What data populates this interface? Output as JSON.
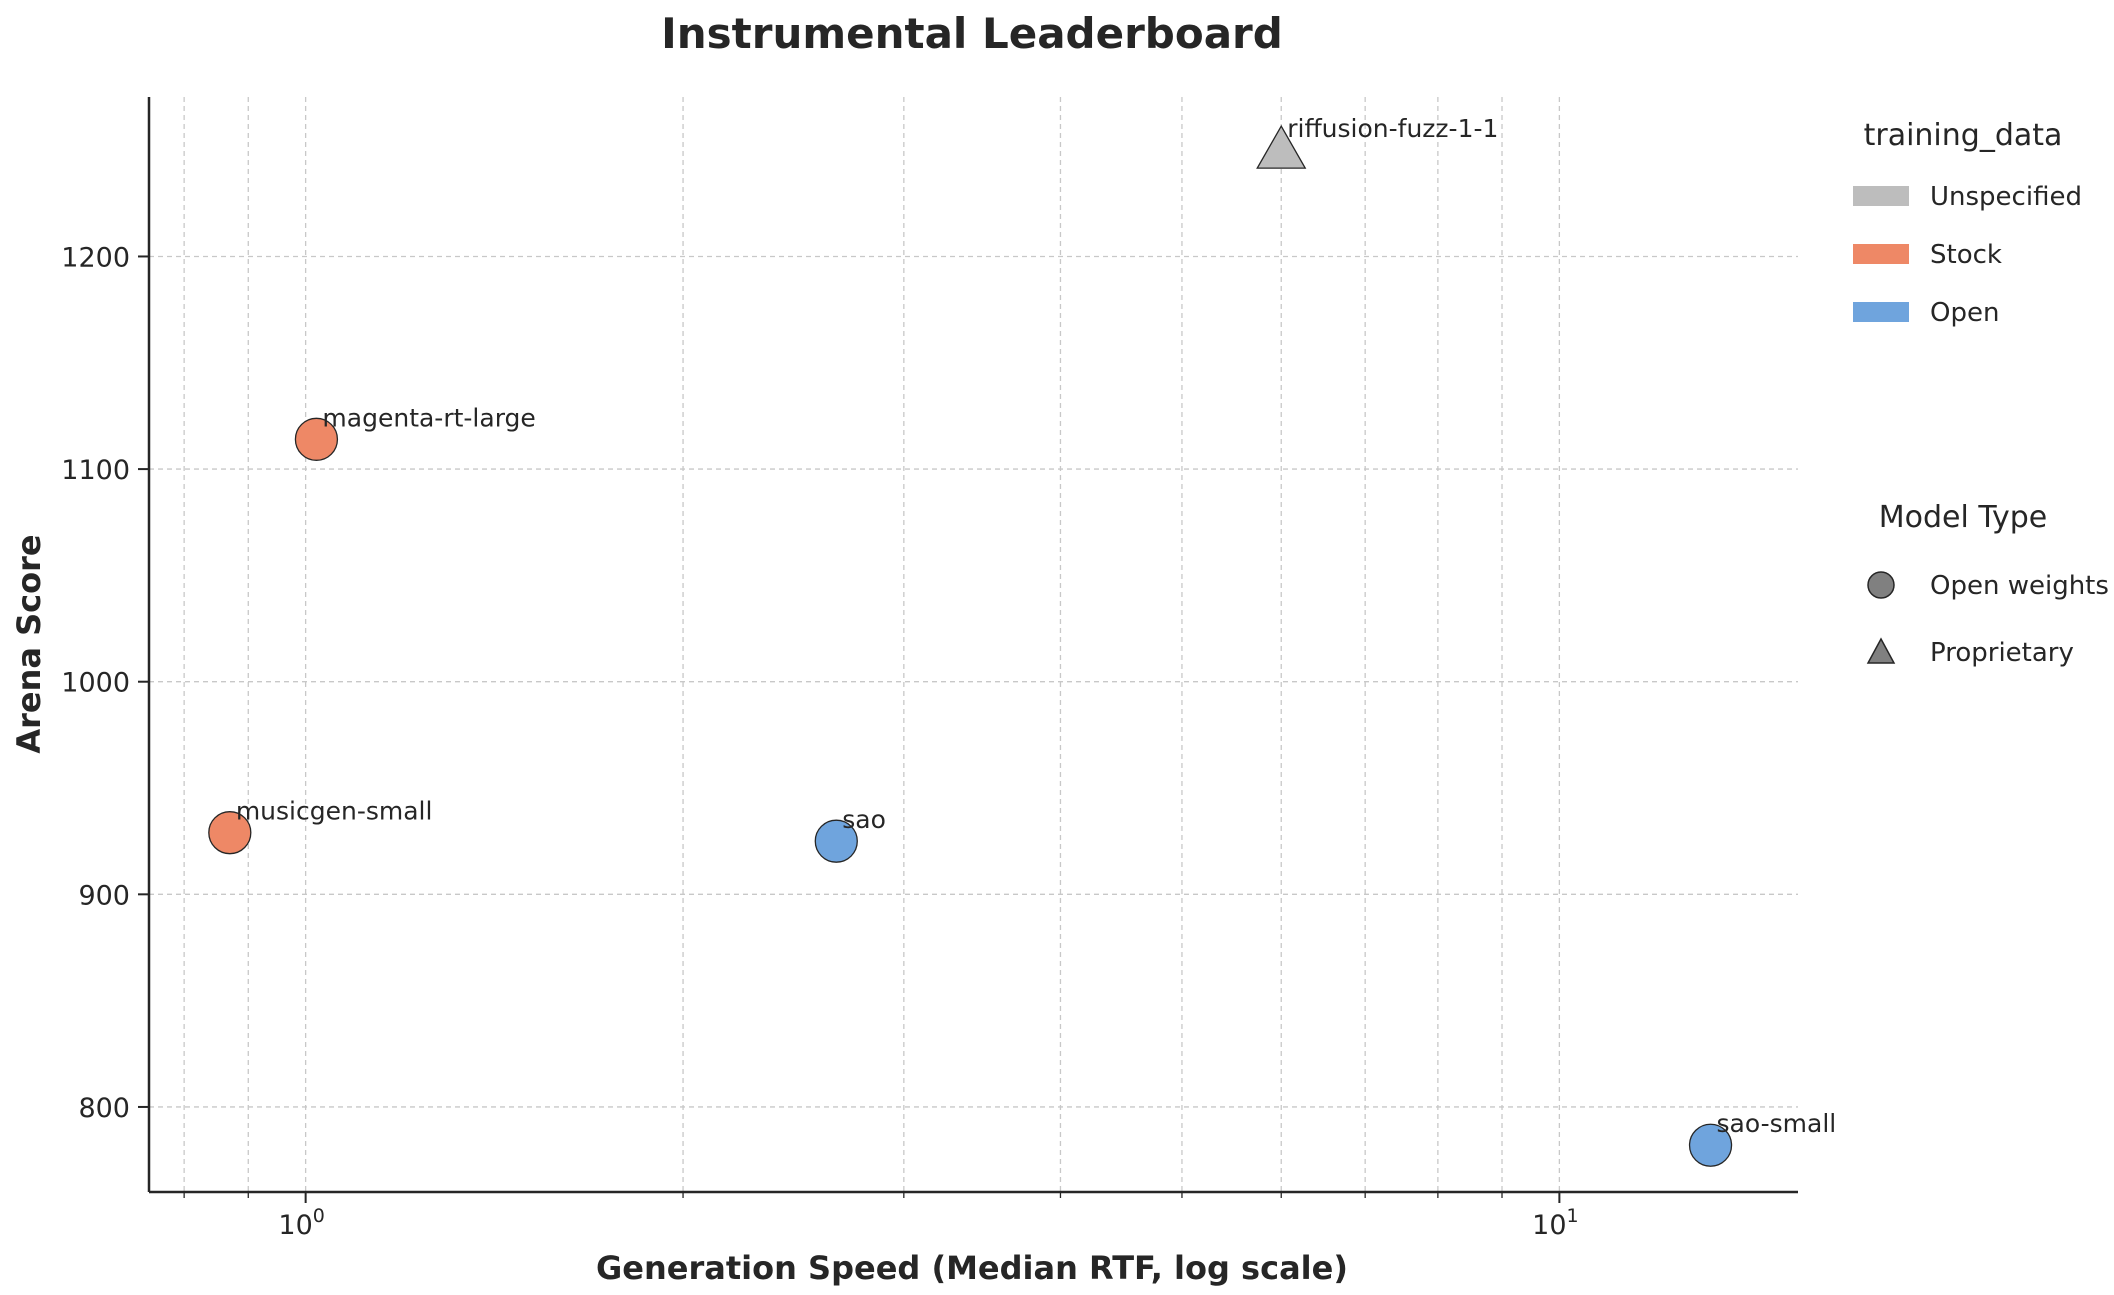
{
  "chart_data": {
    "type": "scatter",
    "title": "Instrumental Leaderboard",
    "xlabel": "Generation Speed (Median RTF, log scale)",
    "ylabel": "Arena Score",
    "xscale": "log",
    "xlim": [
      0.75,
      15.5
    ],
    "ylim": [
      760,
      1275
    ],
    "x_ticks": [
      1,
      10
    ],
    "x_tick_labels": [
      [
        "10",
        "0"
      ],
      [
        "10",
        "1"
      ]
    ],
    "y_ticks": [
      800,
      900,
      1000,
      1100,
      1200
    ],
    "y_tick_labels": [
      "800",
      "900",
      "1000",
      "1100",
      "1200"
    ],
    "grid": true,
    "points": [
      {
        "label": "riffusion-fuzz-1-1",
        "x": 6.0,
        "y": 1250,
        "training_data": "Unspecified",
        "model_type": "Proprietary"
      },
      {
        "label": "magenta-rt-large",
        "x": 1.02,
        "y": 1114,
        "training_data": "Stock",
        "model_type": "Open weights"
      },
      {
        "label": "musicgen-small",
        "x": 0.87,
        "y": 929,
        "training_data": "Stock",
        "model_type": "Open weights"
      },
      {
        "label": "sao",
        "x": 2.65,
        "y": 925,
        "training_data": "Open",
        "model_type": "Open weights"
      },
      {
        "label": "sao-small",
        "x": 13.2,
        "y": 782,
        "training_data": "Open",
        "model_type": "Open weights"
      }
    ],
    "colors": {
      "Unspecified": "#bdbdbd",
      "Stock": "#ee8866",
      "Open": "#6fa4dd"
    },
    "legend": {
      "placement": "right",
      "training_data": {
        "title": "training_data",
        "items": [
          {
            "label": "Unspecified",
            "color": "#bdbdbd"
          },
          {
            "label": "Stock",
            "color": "#ee8866"
          },
          {
            "label": "Open",
            "color": "#6fa4dd"
          }
        ]
      },
      "model_type": {
        "title": "Model Type",
        "items": [
          {
            "label": "Open weights",
            "marker": "circle"
          },
          {
            "label": "Proprietary",
            "marker": "triangle"
          }
        ]
      }
    }
  }
}
